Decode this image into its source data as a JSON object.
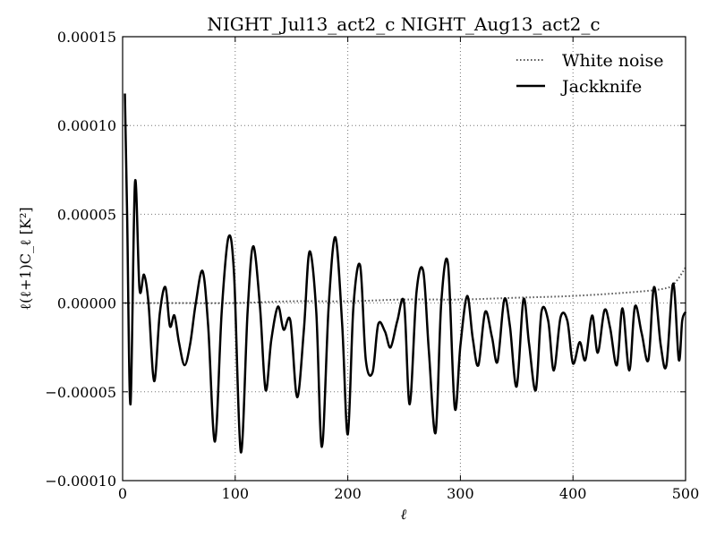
{
  "chart_data": {
    "type": "line",
    "title": "NIGHT_Jul13_act2_c NIGHT_Aug13_act2_c",
    "xlabel": "ℓ",
    "ylabel": "ℓ(ℓ+1)C_ℓ [K²]",
    "xlim": [
      0,
      500
    ],
    "ylim": [
      -0.0001,
      0.00015
    ],
    "grid": true,
    "legend_position": "top-right",
    "x_ticks": [
      0,
      100,
      200,
      300,
      400,
      500
    ],
    "x_tick_labels": [
      "0",
      "100",
      "200",
      "300",
      "400",
      "500"
    ],
    "y_ticks": [
      -0.0001,
      -5e-05,
      0,
      5e-05,
      0.0001,
      0.00015
    ],
    "y_tick_labels": [
      "−0.00010",
      "−0.00005",
      "0.00000",
      "0.00005",
      "0.00010",
      "0.00015"
    ],
    "series": [
      {
        "name": "White noise",
        "style": "dotted",
        "color": "#555555",
        "x": [
          2,
          50,
          100,
          150,
          200,
          250,
          300,
          350,
          400,
          450,
          480,
          490,
          500
        ],
        "y": [
          0.0,
          0.0,
          0.0,
          1e-06,
          1e-06,
          2e-06,
          2e-06,
          3e-06,
          4e-06,
          6e-06,
          8e-06,
          1.1e-05,
          2e-05
        ]
      },
      {
        "name": "Jackknife",
        "style": "solid",
        "color": "#000000",
        "x": [
          2,
          4,
          7,
          11,
          15,
          19,
          23,
          28,
          33,
          38,
          42,
          46,
          50,
          55,
          60,
          65,
          71,
          76,
          82,
          88,
          94,
          99,
          105,
          111,
          116,
          122,
          127,
          132,
          138,
          143,
          149,
          155,
          161,
          166,
          172,
          177,
          183,
          189,
          195,
          200,
          205,
          211,
          216,
          222,
          227,
          233,
          238,
          244,
          250,
          255,
          261,
          267,
          272,
          278,
          283,
          289,
          295,
          300,
          306,
          311,
          316,
          322,
          328,
          333,
          339,
          344,
          350,
          356,
          361,
          367,
          372,
          378,
          383,
          389,
          395,
          400,
          406,
          411,
          417,
          422,
          428,
          433,
          439,
          444,
          450,
          455,
          461,
          467,
          472,
          478,
          483,
          489,
          494,
          497,
          500
        ],
        "y": [
          0.000118,
          5e-05,
          -5.7e-05,
          6.8e-05,
          8e-06,
          1.6e-05,
          0.0,
          -4.4e-05,
          -6e-06,
          9e-06,
          -1.3e-05,
          -7e-06,
          -2.2e-05,
          -3.5e-05,
          -2.3e-05,
          0.0,
          1.8e-05,
          -1.3e-05,
          -7.8e-05,
          -5e-06,
          3.7e-05,
          1.6e-05,
          -8.4e-05,
          -5e-06,
          3.2e-05,
          -2e-06,
          -4.9e-05,
          -2.1e-05,
          -2e-06,
          -1.5e-05,
          -1e-05,
          -5.3e-05,
          -1.5e-05,
          2.9e-05,
          -5e-06,
          -8.1e-05,
          -2e-06,
          3.7e-05,
          -1.2e-05,
          -7.4e-05,
          -2e-06,
          2.1e-05,
          -3.2e-05,
          -3.9e-05,
          -1.2e-05,
          -1.6e-05,
          -2.5e-05,
          -1e-05,
          0.0,
          -5.7e-05,
          6e-06,
          1.8e-05,
          -2.7e-05,
          -7.3e-05,
          0.0,
          2.2e-05,
          -5.9e-05,
          -2.4e-05,
          4e-06,
          -2e-05,
          -3.5e-05,
          -5e-06,
          -1.9e-05,
          -3.3e-05,
          2e-06,
          -1.3e-05,
          -4.7e-05,
          2e-06,
          -2.3e-05,
          -4.9e-05,
          -5e-06,
          -1e-05,
          -3.8e-05,
          -8e-06,
          -1e-05,
          -3.4e-05,
          -2.2e-05,
          -3.2e-05,
          -7e-06,
          -2.8e-05,
          -4e-06,
          -1.4e-05,
          -3.5e-05,
          -3e-06,
          -3.8e-05,
          -2e-06,
          -1.7e-05,
          -3.2e-05,
          9e-06,
          -2.4e-05,
          -3.5e-05,
          1.1e-05,
          -3.2e-05,
          -1e-05,
          -5e-06
        ]
      }
    ]
  }
}
